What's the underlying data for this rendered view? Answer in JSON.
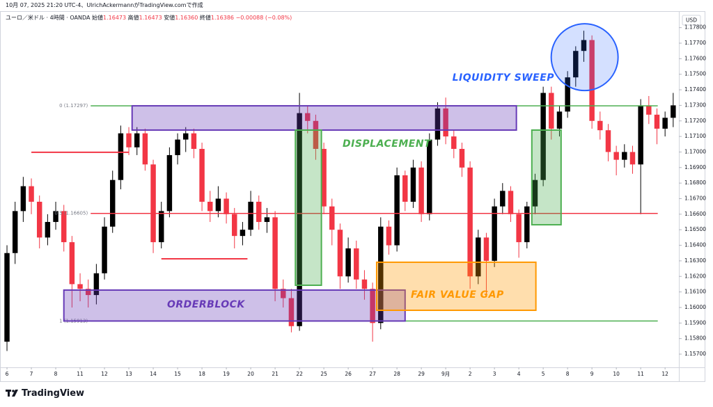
{
  "header": {
    "credit": "10月 07, 2025 21:20 UTC-4、UlrichAckermannがTradingView.comで作成",
    "symbol": "ユーロ／米ドル · 4時間 · OANDA",
    "ohlc": [
      {
        "label": "始値",
        "value": "1.16473"
      },
      {
        "label": "高値",
        "value": "1.16473"
      },
      {
        "label": "安値",
        "value": "1.16360"
      },
      {
        "label": "終値",
        "value": "1.16386"
      }
    ],
    "change": "−0.00088 (−0.08%)",
    "brand": "TradingView"
  },
  "chart_data": {
    "type": "candlestick",
    "currency": "USD",
    "up_color": "#000000",
    "down_color": "#f23645",
    "xlim": [
      -0.86,
      82.7
    ],
    "ylim": [
      1.15615,
      1.17897
    ],
    "xticks": [
      {
        "value": 0,
        "label": "6"
      },
      {
        "value": 3,
        "label": "7"
      },
      {
        "value": 6,
        "label": "8"
      },
      {
        "value": 9,
        "label": "11"
      },
      {
        "value": 12,
        "label": "12"
      },
      {
        "value": 15,
        "label": "13"
      },
      {
        "value": 18,
        "label": "14"
      },
      {
        "value": 21,
        "label": "15"
      },
      {
        "value": 24,
        "label": "18"
      },
      {
        "value": 27,
        "label": "19"
      },
      {
        "value": 30,
        "label": "20"
      },
      {
        "value": 33,
        "label": "21"
      },
      {
        "value": 36,
        "label": "22"
      },
      {
        "value": 39,
        "label": "25"
      },
      {
        "value": 42,
        "label": "26"
      },
      {
        "value": 45,
        "label": "27"
      },
      {
        "value": 48,
        "label": "28"
      },
      {
        "value": 51,
        "label": "29"
      },
      {
        "value": 54,
        "label": "9月"
      },
      {
        "value": 57,
        "label": "2"
      },
      {
        "value": 60,
        "label": "3"
      },
      {
        "value": 63,
        "label": "4"
      },
      {
        "value": 66,
        "label": "5"
      },
      {
        "value": 69,
        "label": "8"
      },
      {
        "value": 72,
        "label": "9"
      },
      {
        "value": 75,
        "label": "10"
      },
      {
        "value": 78,
        "label": "11"
      },
      {
        "value": 81,
        "label": "12"
      }
    ],
    "yticks": [
      {
        "value": 1.157,
        "label": "1.15700"
      },
      {
        "value": 1.158,
        "label": "1.15800"
      },
      {
        "value": 1.159,
        "label": "1.15900"
      },
      {
        "value": 1.16,
        "label": "1.16000"
      },
      {
        "value": 1.161,
        "label": "1.16100"
      },
      {
        "value": 1.162,
        "label": "1.16200"
      },
      {
        "value": 1.163,
        "label": "1.16300"
      },
      {
        "value": 1.164,
        "label": "1.16400"
      },
      {
        "value": 1.165,
        "label": "1.16500"
      },
      {
        "value": 1.166,
        "label": "1.16600"
      },
      {
        "value": 1.167,
        "label": "1.16700"
      },
      {
        "value": 1.168,
        "label": "1.16800"
      },
      {
        "value": 1.169,
        "label": "1.16900"
      },
      {
        "value": 1.17,
        "label": "1.17000"
      },
      {
        "value": 1.171,
        "label": "1.17100"
      },
      {
        "value": 1.172,
        "label": "1.17200"
      },
      {
        "value": 1.173,
        "label": "1.17300"
      },
      {
        "value": 1.174,
        "label": "1.17400"
      },
      {
        "value": 1.175,
        "label": "1.17500"
      },
      {
        "value": 1.176,
        "label": "1.17600"
      },
      {
        "value": 1.177,
        "label": "1.17700"
      },
      {
        "value": 1.178,
        "label": "1.17800"
      }
    ],
    "candles": [
      [
        1.1578,
        1.164,
        1.1572,
        1.1635
      ],
      [
        1.1635,
        1.1668,
        1.1628,
        1.1662
      ],
      [
        1.1662,
        1.1684,
        1.1655,
        1.1678
      ],
      [
        1.1678,
        1.1683,
        1.166,
        1.1668
      ],
      [
        1.1668,
        1.1672,
        1.1638,
        1.1645
      ],
      [
        1.1645,
        1.166,
        1.164,
        1.1655
      ],
      [
        1.1655,
        1.1668,
        1.165,
        1.1662
      ],
      [
        1.1662,
        1.1666,
        1.1636,
        1.1642
      ],
      [
        1.1642,
        1.1646,
        1.16,
        1.1615
      ],
      [
        1.1615,
        1.1622,
        1.1604,
        1.1612
      ],
      [
        1.1612,
        1.1618,
        1.16,
        1.1608
      ],
      [
        1.1608,
        1.1628,
        1.1602,
        1.1622
      ],
      [
        1.1622,
        1.1658,
        1.1618,
        1.1652
      ],
      [
        1.1652,
        1.1688,
        1.1648,
        1.1682
      ],
      [
        1.1682,
        1.1717,
        1.1676,
        1.1712
      ],
      [
        1.1712,
        1.1716,
        1.1698,
        1.1703
      ],
      [
        1.1703,
        1.1716,
        1.1698,
        1.1712
      ],
      [
        1.1712,
        1.1715,
        1.1688,
        1.1692
      ],
      [
        1.1692,
        1.1695,
        1.1635,
        1.1642
      ],
      [
        1.1642,
        1.1668,
        1.1638,
        1.1662
      ],
      [
        1.1662,
        1.1703,
        1.1658,
        1.1698
      ],
      [
        1.1698,
        1.1712,
        1.1692,
        1.1708
      ],
      [
        1.1708,
        1.1716,
        1.17,
        1.1712
      ],
      [
        1.1712,
        1.1715,
        1.1696,
        1.1702
      ],
      [
        1.1702,
        1.1706,
        1.1662,
        1.1668
      ],
      [
        1.1668,
        1.1675,
        1.1655,
        1.1662
      ],
      [
        1.1662,
        1.1678,
        1.1658,
        1.167
      ],
      [
        1.167,
        1.1674,
        1.1654,
        1.166
      ],
      [
        1.166,
        1.1664,
        1.1638,
        1.1646
      ],
      [
        1.1646,
        1.1655,
        1.164,
        1.165
      ],
      [
        1.165,
        1.1675,
        1.1646,
        1.1668
      ],
      [
        1.1668,
        1.1672,
        1.165,
        1.1655
      ],
      [
        1.1655,
        1.1664,
        1.1648,
        1.1658
      ],
      [
        1.1658,
        1.1662,
        1.1604,
        1.1612
      ],
      [
        1.1612,
        1.1618,
        1.16,
        1.1606
      ],
      [
        1.1606,
        1.1612,
        1.1584,
        1.1588
      ],
      [
        1.1588,
        1.1738,
        1.1585,
        1.1725
      ],
      [
        1.1725,
        1.173,
        1.1712,
        1.172
      ],
      [
        1.172,
        1.1724,
        1.1695,
        1.1702
      ],
      [
        1.1702,
        1.1706,
        1.166,
        1.1665
      ],
      [
        1.1665,
        1.167,
        1.164,
        1.165
      ],
      [
        1.165,
        1.1654,
        1.1612,
        1.162
      ],
      [
        1.162,
        1.1645,
        1.1616,
        1.1638
      ],
      [
        1.1638,
        1.1643,
        1.1612,
        1.1618
      ],
      [
        1.1618,
        1.1624,
        1.1605,
        1.1612
      ],
      [
        1.1612,
        1.1616,
        1.1578,
        1.159
      ],
      [
        1.159,
        1.1658,
        1.1586,
        1.1652
      ],
      [
        1.1652,
        1.1656,
        1.1634,
        1.164
      ],
      [
        1.164,
        1.169,
        1.1636,
        1.1685
      ],
      [
        1.1685,
        1.1688,
        1.1662,
        1.1668
      ],
      [
        1.1668,
        1.1695,
        1.1664,
        1.169
      ],
      [
        1.169,
        1.1694,
        1.1655,
        1.166
      ],
      [
        1.166,
        1.1712,
        1.1656,
        1.1708
      ],
      [
        1.1708,
        1.1732,
        1.1704,
        1.1728
      ],
      [
        1.1728,
        1.1735,
        1.1705,
        1.171
      ],
      [
        1.171,
        1.1714,
        1.1696,
        1.1702
      ],
      [
        1.1702,
        1.1706,
        1.1684,
        1.169
      ],
      [
        1.169,
        1.1694,
        1.1612,
        1.162
      ],
      [
        1.162,
        1.165,
        1.1615,
        1.1645
      ],
      [
        1.1645,
        1.1648,
        1.1608,
        1.163
      ],
      [
        1.163,
        1.167,
        1.1626,
        1.1665
      ],
      [
        1.1665,
        1.168,
        1.166,
        1.1675
      ],
      [
        1.1675,
        1.1678,
        1.1655,
        1.166
      ],
      [
        1.166,
        1.1663,
        1.1632,
        1.1642
      ],
      [
        1.1642,
        1.1668,
        1.1638,
        1.1665
      ],
      [
        1.1665,
        1.1686,
        1.166,
        1.1682
      ],
      [
        1.1682,
        1.1742,
        1.1678,
        1.1738
      ],
      [
        1.1738,
        1.1742,
        1.1708,
        1.1715
      ],
      [
        1.1715,
        1.173,
        1.171,
        1.1726
      ],
      [
        1.1726,
        1.1752,
        1.1722,
        1.1748
      ],
      [
        1.1748,
        1.1768,
        1.1742,
        1.1765
      ],
      [
        1.1765,
        1.1778,
        1.1758,
        1.1772
      ],
      [
        1.1772,
        1.1775,
        1.1715,
        1.172
      ],
      [
        1.172,
        1.1726,
        1.1708,
        1.1714
      ],
      [
        1.1714,
        1.1718,
        1.1694,
        1.17
      ],
      [
        1.17,
        1.1704,
        1.1685,
        1.1695
      ],
      [
        1.1695,
        1.1705,
        1.169,
        1.17
      ],
      [
        1.17,
        1.1704,
        1.1686,
        1.1692
      ],
      [
        1.1692,
        1.1734,
        1.166,
        1.173
      ],
      [
        1.173,
        1.1736,
        1.1718,
        1.1724
      ],
      [
        1.1724,
        1.1728,
        1.1705,
        1.1715
      ],
      [
        1.1715,
        1.1726,
        1.171,
        1.1722
      ],
      [
        1.1722,
        1.1738,
        1.1716,
        1.173
      ]
    ],
    "fib": {
      "x": [
        10.3,
        80.1
      ],
      "levels": [
        {
          "label": "0 (1.17297)",
          "value": 1.17297,
          "color": "#4caf50"
        },
        {
          "label": "0.5 (1.16605)",
          "value": 1.16605,
          "color": "#f23645"
        },
        {
          "label": "1 (1.15913)",
          "value": 1.15913,
          "color": "#4caf50"
        }
      ]
    },
    "hlines": [
      {
        "x": [
          3.0,
          15.0
        ],
        "value": 1.16998,
        "color": "#f23645"
      },
      {
        "x": [
          19.0,
          29.6
        ],
        "value": 1.16313,
        "color": "#f23645"
      }
    ],
    "zones": [
      {
        "label": "ORDERBLOCK",
        "x": [
          7.0,
          49.0
        ],
        "y": [
          1.16112,
          1.15913
        ],
        "color": "#673ab7"
      },
      {
        "x": [
          15.4,
          62.7
        ],
        "y": [
          1.17297,
          1.17141
        ],
        "color": "#673ab7"
      },
      {
        "label": "DISPLACEMENT",
        "x": [
          35.5,
          38.7
        ],
        "y": [
          1.17141,
          1.16143
        ],
        "color": "#4caf50"
      },
      {
        "x": [
          64.6,
          68.2
        ],
        "y": [
          1.17141,
          1.16532
        ],
        "color": "#4caf50"
      },
      {
        "label": "FAIR VALUE GAP",
        "x": [
          45.5,
          65.1
        ],
        "y": [
          1.16291,
          1.15982
        ],
        "color": "#ff9800"
      }
    ],
    "sweep": {
      "label": "LIQUIDITY SWEEP",
      "x": 71.1,
      "y": 1.1761,
      "color": "#2962ff"
    }
  }
}
